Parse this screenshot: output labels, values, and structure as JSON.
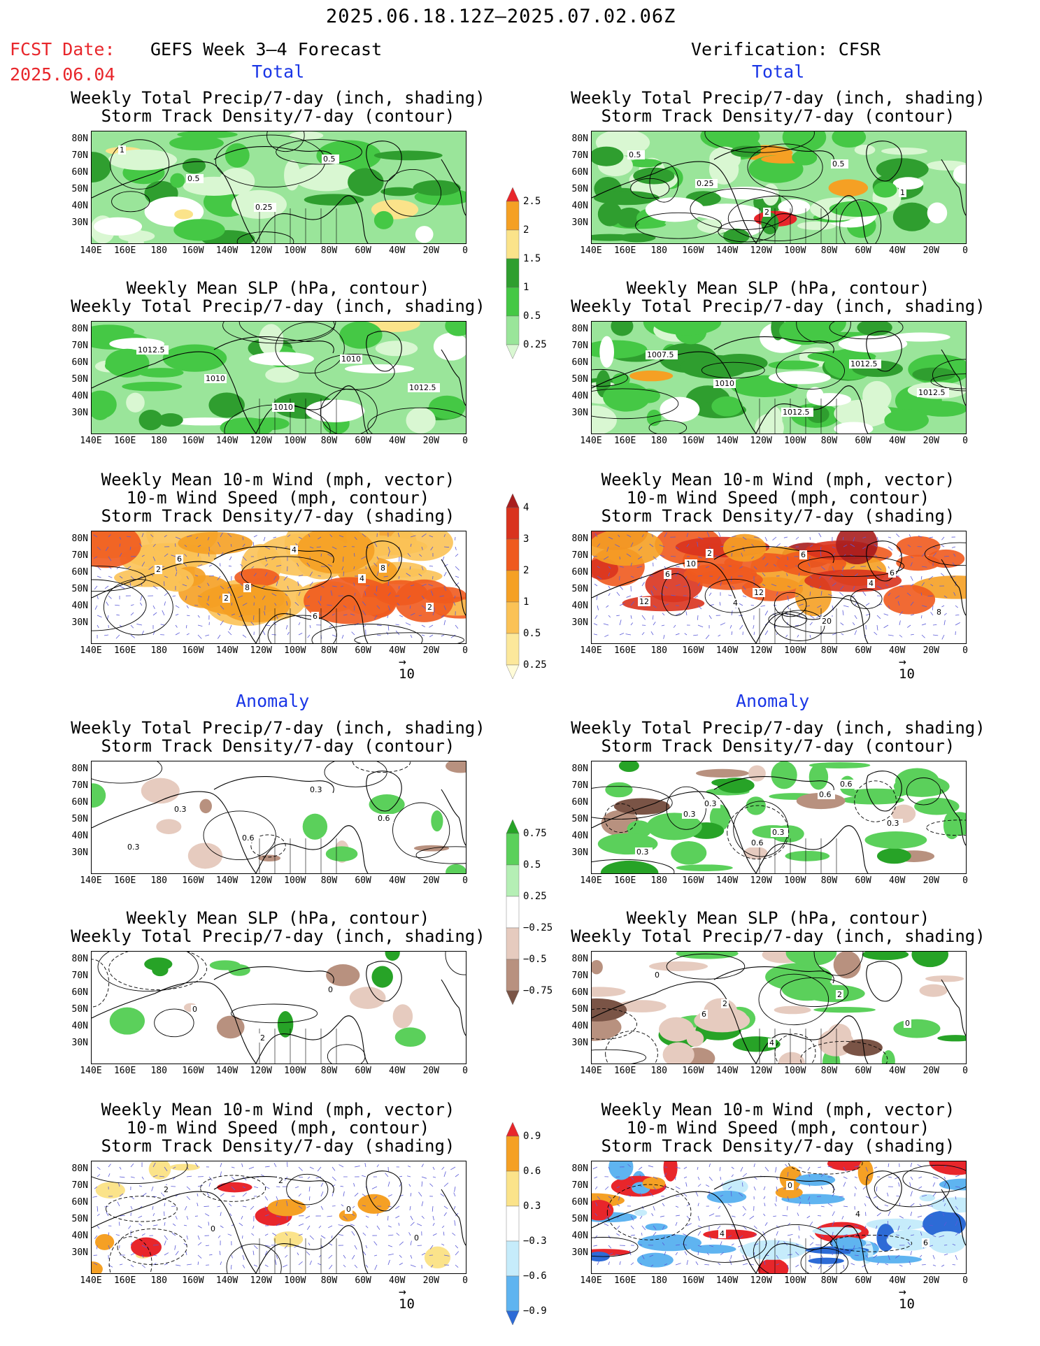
{
  "header": {
    "date_range": "2025.06.18.12Z–2025.07.02.06Z",
    "fcst_label": "FCST Date:",
    "fcst_date": "2025.06.04",
    "left_title": "GEFS Week 3–4 Forecast",
    "right_title": "Verification: CFSR"
  },
  "sections": {
    "total": "Total",
    "anomaly": "Anomaly"
  },
  "panel_titles": {
    "precip_storm": [
      "Weekly Total Precip/7-day (inch, shading)",
      "Storm Track Density/7-day (contour)"
    ],
    "slp_precip": [
      "Weekly Mean SLP (hPa, contour)",
      "Weekly Total Precip/7-day (inch, shading)"
    ],
    "wind": [
      "Weekly Mean 10-m Wind (mph, vector)",
      "10-m Wind Speed (mph, contour)",
      "Storm Track Density/7-day (shading)"
    ]
  },
  "axes": {
    "lat_labels": [
      "80N",
      "70N",
      "60N",
      "50N",
      "40N",
      "30N"
    ],
    "lon_labels": [
      "140E",
      "160E",
      "180",
      "160W",
      "140W",
      "120W",
      "100W",
      "80W",
      "60W",
      "40W",
      "20W",
      "0"
    ]
  },
  "vector_ref": "10",
  "colorbars": {
    "total_precip": {
      "labels": [
        "2.5",
        "2",
        "1.5",
        "1",
        "0.5",
        "0.25"
      ],
      "colors": [
        "#e8262b",
        "#f5a024",
        "#fbe38a",
        "#2f9e2f",
        "#45c845",
        "#9ae59a",
        "#d9f7d2"
      ]
    },
    "total_storm": {
      "labels": [
        "4",
        "3",
        "2",
        "1",
        "0.5",
        "0.25"
      ],
      "colors": [
        "#a81e1e",
        "#d9331e",
        "#ef5a1e",
        "#f5a024",
        "#fbc256",
        "#fce89b",
        "#fffbd8"
      ]
    },
    "anom_precip": {
      "labels": [
        "0.75",
        "0.5",
        "0.25",
        "−0.25",
        "−0.5",
        "−0.75"
      ],
      "colors": [
        "#27a327",
        "#5bd05b",
        "#b5efb5",
        "#ffffff",
        "#e6cbbf",
        "#b8917f",
        "#7a5446"
      ]
    },
    "anom_storm": {
      "labels": [
        "0.9",
        "0.6",
        "0.3",
        "−0.3",
        "−0.6",
        "−0.9"
      ],
      "colors": [
        "#e8262b",
        "#f5a024",
        "#fbe38a",
        "#ffffff",
        "#c6ecfb",
        "#5fb4f0",
        "#2d6bd6"
      ]
    }
  },
  "contour_labels": {
    "fcst_total_precip": [
      "1",
      "0.5",
      "0.25",
      "0.5"
    ],
    "verif_total_precip": [
      "0.5",
      "0.25",
      "2",
      "0.5",
      "1"
    ],
    "fcst_total_slp": [
      "1012.5",
      "1010",
      "1010",
      "1010",
      "1012.5"
    ],
    "verif_total_slp": [
      "1007.5",
      "1010",
      "1012.5",
      "1012.5",
      "1012.5"
    ],
    "fcst_total_wind": [
      "2",
      "2",
      "4",
      "4",
      "2",
      "6",
      "8",
      "6",
      "8"
    ],
    "verif_total_wind": [
      "6",
      "4",
      "6",
      "4",
      "8",
      "10",
      "12",
      "20",
      "6",
      "12",
      "2"
    ],
    "fcst_anom_precip": [
      "0.3",
      "0.6",
      "0.3",
      "0.6",
      "0.3"
    ],
    "verif_anom_precip": [
      "0.3",
      "0.6",
      "0.6",
      "0.3",
      "0.3",
      "0.3",
      "0.3",
      "0.6"
    ],
    "fcst_anom_slp": [
      "0",
      "2",
      "0"
    ],
    "verif_anom_slp": [
      "6",
      "4",
      "2",
      "0",
      "0",
      "2"
    ],
    "fcst_anom_wind": [
      "0",
      "2",
      "0",
      "0",
      "2"
    ],
    "verif_anom_wind": [
      "4",
      "0",
      "4",
      "6"
    ]
  }
}
